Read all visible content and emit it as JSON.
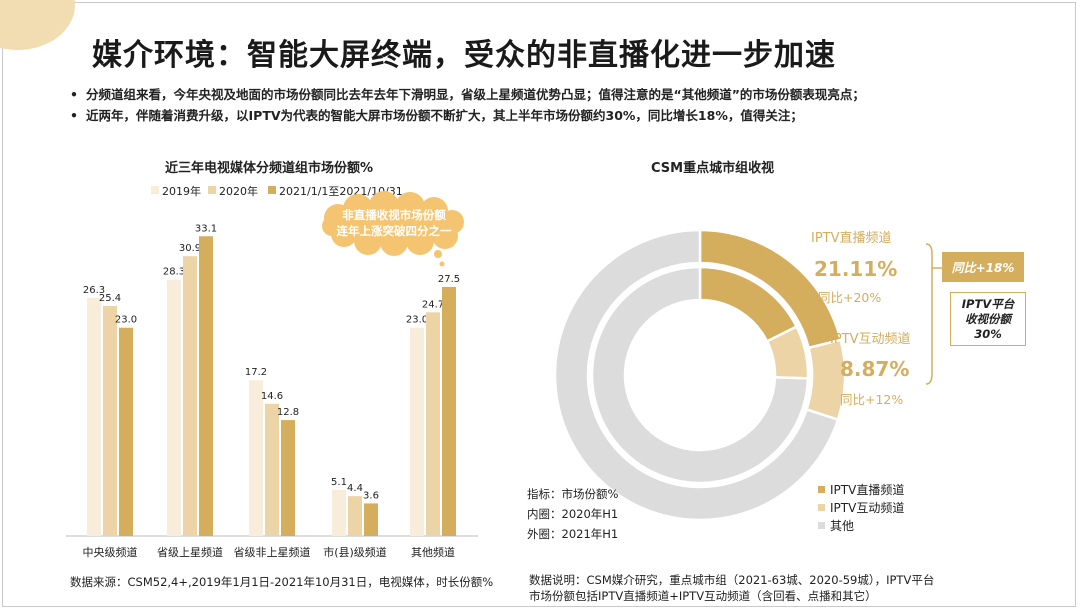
{
  "title": "媒介环境：智能大屏终端，受众的非直播化进一步加速",
  "bullets": [
    "分频道组来看，今年央视及地面的市场份额同比去年去年下滑明显，省级上星频道优势凸显；值得注意的是“其他频道”的市场份额表现亮点；",
    "近两年，伴随着消费升级，以IPTV为代表的智能大屏市场份额不断扩大，其上半年市场份额约30%，同比增长18%，值得关注；"
  ],
  "colors": {
    "y2019": "#f8ecda",
    "y2020": "#ecd4a6",
    "y2021": "#d4ad5d",
    "other": "#dcdcdc",
    "accent": "#d4ad5d"
  },
  "chart_data": [
    {
      "type": "bar",
      "title": "近三年电视媒体分频道组市场份额%",
      "categories": [
        "中央级频道",
        "省级上星频道",
        "省级非上星频道",
        "市(县)级频道",
        "其他频道"
      ],
      "series": [
        {
          "name": "2019年",
          "values": [
            26.3,
            28.3,
            17.2,
            5.1,
            23.0
          ]
        },
        {
          "name": "2020年",
          "values": [
            25.4,
            30.9,
            14.6,
            4.4,
            24.7
          ]
        },
        {
          "name": "2021/1/1至2021/10/31",
          "values": [
            23.0,
            33.1,
            12.8,
            3.6,
            27.5
          ]
        }
      ],
      "ylim": [
        0,
        36
      ],
      "grid": false,
      "legend": "top",
      "annotation": "非直播收视市场份额连年上涨突破四分之一"
    },
    {
      "type": "pie",
      "title": "CSM重点城市组收视",
      "rings": [
        {
          "name": "2020年H1",
          "position": "inner",
          "values": [
            17.6,
            7.9,
            74.5
          ]
        },
        {
          "name": "2021年H1",
          "position": "outer",
          "values": [
            21.11,
            8.87,
            70.02
          ]
        }
      ],
      "slices": [
        "IPTV直播频道",
        "IPTV互动频道",
        "其他"
      ],
      "labels": {
        "live_name": "IPTV直播频道",
        "live_value": "21.11%",
        "live_yoy": "同比+20%",
        "interactive_name": "IPTV互动频道",
        "interactive_value": "8.87%",
        "interactive_yoy": "同比+12%"
      },
      "legend": "bottom-right",
      "indicator_lines": [
        "指标：市场份额%",
        "内圈：2020年H1",
        "外圈：2021年H1"
      ],
      "callout_yoy": "同比+18%",
      "callout_share_lines": [
        "IPTV平台",
        "收视份额",
        "30%"
      ]
    }
  ],
  "footer": {
    "left_source": "数据来源：CSM52,4+,2019年1月1日-2021年10月31日，电视媒体，时长份额%",
    "right_note_lines": [
      "数据说明：CSM媒介研究，重点城市组（2021-63城、2020-59城），IPTV平台",
      "市场份额包括IPTV直播频道+IPTV互动频道（含回看、点播和其它）"
    ]
  }
}
